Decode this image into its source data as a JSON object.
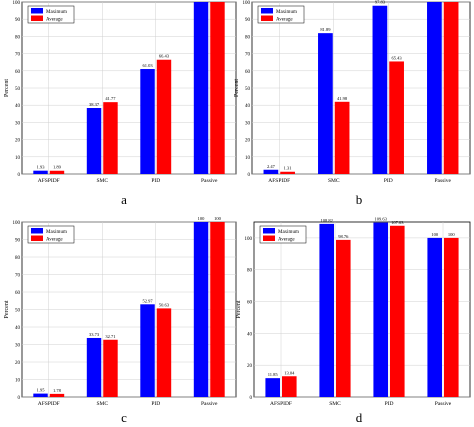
{
  "chart_data": [
    {
      "type": "bar",
      "panel": "a",
      "categories": [
        "AFSPIDF",
        "SMC",
        "PID",
        "Passive"
      ],
      "series": [
        {
          "name": "Maximum",
          "color": "#0000ff",
          "values": [
            1.93,
            38.37,
            61.03,
            100
          ],
          "labels": [
            "1.93",
            "38.37",
            "61.03",
            "100"
          ]
        },
        {
          "name": "Average",
          "color": "#ff0000",
          "values": [
            1.89,
            41.77,
            66.43,
            100
          ],
          "labels": [
            "1.89",
            "41.77",
            "66.43",
            "100"
          ]
        }
      ],
      "ylabel": "Percent",
      "xlabel": "",
      "ylim": [
        0,
        100
      ],
      "yticks": [
        0,
        10,
        20,
        30,
        40,
        50,
        60,
        70,
        80,
        90,
        100
      ],
      "grid": true,
      "legend": "top-left"
    },
    {
      "type": "bar",
      "panel": "b",
      "categories": [
        "AFSPIDF",
        "SMC",
        "PID",
        "Passive"
      ],
      "series": [
        {
          "name": "Maximum",
          "color": "#0000ff",
          "values": [
            2.47,
            81.89,
            97.83,
            100
          ],
          "labels": [
            "2.47",
            "81.89",
            "97.83",
            "100"
          ]
        },
        {
          "name": "Average",
          "color": "#ff0000",
          "values": [
            1.31,
            41.98,
            65.43,
            100
          ],
          "labels": [
            "1.31",
            "41.98",
            "65.43",
            "100"
          ]
        }
      ],
      "ylabel": "Percent",
      "xlabel": "",
      "ylim": [
        0,
        100
      ],
      "yticks": [
        0,
        10,
        20,
        30,
        40,
        50,
        60,
        70,
        80,
        90,
        100
      ],
      "grid": true,
      "legend": "top-left"
    },
    {
      "type": "bar",
      "panel": "c",
      "categories": [
        "AFSPIDF",
        "SMC",
        "PID",
        "Passive"
      ],
      "series": [
        {
          "name": "Maximum",
          "color": "#0000ff",
          "values": [
            1.95,
            33.73,
            52.97,
            100
          ],
          "labels": [
            "1.95",
            "33.73",
            "52.97",
            "100"
          ]
        },
        {
          "name": "Average",
          "color": "#ff0000",
          "values": [
            1.78,
            32.71,
            50.63,
            100
          ],
          "labels": [
            "1.78",
            "32.71",
            "50.63",
            "100"
          ]
        }
      ],
      "ylabel": "Percent",
      "xlabel": "",
      "ylim": [
        0,
        100
      ],
      "yticks": [
        0,
        10,
        20,
        30,
        40,
        50,
        60,
        70,
        80,
        90,
        100
      ],
      "grid": true,
      "legend": "top-left"
    },
    {
      "type": "bar",
      "panel": "d",
      "categories": [
        "AFSPIDF",
        "SMC",
        "PID",
        "Passive"
      ],
      "series": [
        {
          "name": "Maximum",
          "color": "#0000ff",
          "values": [
            11.85,
            108.82,
            109.63,
            100
          ],
          "labels": [
            "11.85",
            "108.82",
            "109.63",
            "100"
          ]
        },
        {
          "name": "Average",
          "color": "#ff0000",
          "values": [
            13.04,
            98.76,
            107.63,
            100
          ],
          "labels": [
            "13.04",
            "98.76",
            "107.63",
            "100"
          ]
        }
      ],
      "ylabel": "Percent",
      "xlabel": "",
      "ylim": [
        0,
        110
      ],
      "yticks": [
        0,
        20,
        40,
        60,
        80,
        100
      ],
      "grid": true,
      "legend": "top-left"
    }
  ],
  "captions": [
    "a",
    "b",
    "c",
    "d"
  ]
}
